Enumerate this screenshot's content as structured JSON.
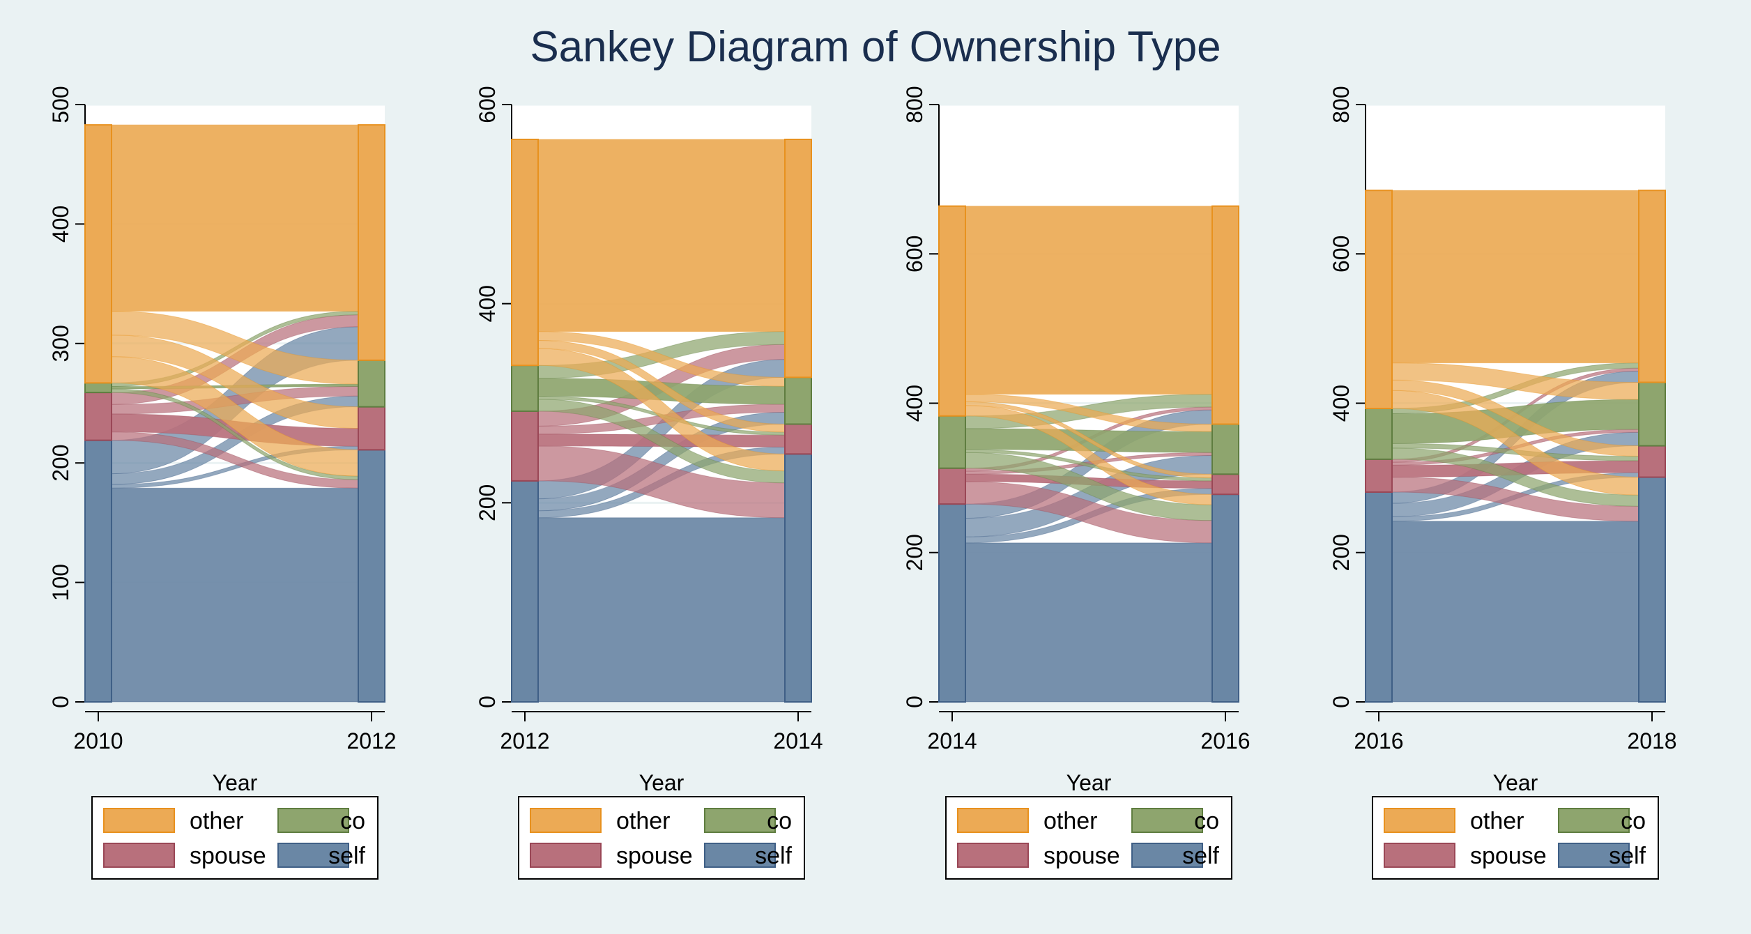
{
  "figure_title": "Sankey Diagram of Ownership Type",
  "colors": {
    "other": "#ecaa55",
    "co": "#8ea56e",
    "spouse": "#b8707c",
    "self": "#6a87a5",
    "other_edge": "#e8911e",
    "co_edge": "#5f7d40",
    "spouse_edge": "#9a4756",
    "self_edge": "#3f5f86",
    "background": "#eaf2f3",
    "plot_background": "#ffffff",
    "grid": "#eaf2f3",
    "title": "#1a2e4e"
  },
  "chart_data": [
    {
      "type": "sankey",
      "xlabel": "Year",
      "x": [
        2010,
        2012
      ],
      "ylim": [
        0,
        500
      ],
      "yticks": [
        0,
        100,
        200,
        300,
        400,
        500
      ],
      "categories": [
        "self",
        "spouse",
        "co",
        "other"
      ],
      "legend": [
        "other",
        "co",
        "spouse",
        "self"
      ],
      "legend_position": "bottom",
      "totals": [
        {
          "self": 219,
          "spouse": 40,
          "co": 8,
          "other": 216
        },
        {
          "self": 211,
          "spouse": 36,
          "co": 39,
          "other": 197
        }
      ],
      "flows": [
        {
          "from": "self",
          "to": "self",
          "value": 179
        },
        {
          "from": "self",
          "to": "spouse",
          "value": 3
        },
        {
          "from": "self",
          "to": "co",
          "value": 9
        },
        {
          "from": "self",
          "to": "other",
          "value": 28
        },
        {
          "from": "spouse",
          "to": "self",
          "value": 7
        },
        {
          "from": "spouse",
          "to": "spouse",
          "value": 15
        },
        {
          "from": "spouse",
          "to": "co",
          "value": 8
        },
        {
          "from": "spouse",
          "to": "other",
          "value": 10
        },
        {
          "from": "co",
          "to": "self",
          "value": 3
        },
        {
          "from": "co",
          "to": "co",
          "value": 2
        },
        {
          "from": "co",
          "to": "other",
          "value": 3
        },
        {
          "from": "other",
          "to": "self",
          "value": 22
        },
        {
          "from": "other",
          "to": "spouse",
          "value": 18
        },
        {
          "from": "other",
          "to": "co",
          "value": 20
        },
        {
          "from": "other",
          "to": "other",
          "value": 156
        }
      ]
    },
    {
      "type": "sankey",
      "xlabel": "Year",
      "x": [
        2012,
        2014
      ],
      "ylim": [
        0,
        600
      ],
      "yticks": [
        0,
        200,
        400,
        600
      ],
      "categories": [
        "self",
        "spouse",
        "co",
        "other"
      ],
      "legend": [
        "other",
        "co",
        "spouse",
        "self"
      ],
      "legend_position": "bottom",
      "totals": [
        {
          "self": 222,
          "spouse": 70,
          "co": 46,
          "other": 227
        },
        {
          "self": 249,
          "spouse": 30,
          "co": 47,
          "other": 239
        }
      ],
      "flows": [
        {
          "from": "self",
          "to": "self",
          "value": 185
        },
        {
          "from": "self",
          "to": "spouse",
          "value": 7
        },
        {
          "from": "self",
          "to": "co",
          "value": 12
        },
        {
          "from": "self",
          "to": "other",
          "value": 18
        },
        {
          "from": "spouse",
          "to": "self",
          "value": 35
        },
        {
          "from": "spouse",
          "to": "spouse",
          "value": 12
        },
        {
          "from": "spouse",
          "to": "co",
          "value": 8
        },
        {
          "from": "spouse",
          "to": "other",
          "value": 15
        },
        {
          "from": "co",
          "to": "self",
          "value": 12
        },
        {
          "from": "co",
          "to": "spouse",
          "value": 3
        },
        {
          "from": "co",
          "to": "co",
          "value": 18
        },
        {
          "from": "co",
          "to": "other",
          "value": 13
        },
        {
          "from": "other",
          "to": "self",
          "value": 17
        },
        {
          "from": "other",
          "to": "spouse",
          "value": 8
        },
        {
          "from": "other",
          "to": "co",
          "value": 9
        },
        {
          "from": "other",
          "to": "other",
          "value": 193
        }
      ]
    },
    {
      "type": "sankey",
      "xlabel": "Year",
      "x": [
        2014,
        2016
      ],
      "ylim": [
        0,
        800
      ],
      "yticks": [
        0,
        200,
        400,
        600,
        800
      ],
      "categories": [
        "self",
        "spouse",
        "co",
        "other"
      ],
      "legend": [
        "other",
        "co",
        "spouse",
        "self"
      ],
      "legend_position": "bottom",
      "totals": [
        {
          "self": 265,
          "spouse": 48,
          "co": 70,
          "other": 281
        },
        {
          "self": 278,
          "spouse": 27,
          "co": 67,
          "other": 292
        }
      ],
      "flows": [
        {
          "from": "self",
          "to": "self",
          "value": 213
        },
        {
          "from": "self",
          "to": "spouse",
          "value": 8
        },
        {
          "from": "self",
          "to": "co",
          "value": 25
        },
        {
          "from": "self",
          "to": "other",
          "value": 19
        },
        {
          "from": "spouse",
          "to": "self",
          "value": 30
        },
        {
          "from": "spouse",
          "to": "spouse",
          "value": 10
        },
        {
          "from": "spouse",
          "to": "co",
          "value": 4
        },
        {
          "from": "spouse",
          "to": "other",
          "value": 4
        },
        {
          "from": "co",
          "to": "self",
          "value": 21
        },
        {
          "from": "co",
          "to": "spouse",
          "value": 4
        },
        {
          "from": "co",
          "to": "co",
          "value": 28
        },
        {
          "from": "co",
          "to": "other",
          "value": 17
        },
        {
          "from": "other",
          "to": "self",
          "value": 14
        },
        {
          "from": "other",
          "to": "spouse",
          "value": 5
        },
        {
          "from": "other",
          "to": "co",
          "value": 10
        },
        {
          "from": "other",
          "to": "other",
          "value": 252
        }
      ]
    },
    {
      "type": "sankey",
      "xlabel": "Year",
      "x": [
        2016,
        2018
      ],
      "ylim": [
        0,
        800
      ],
      "yticks": [
        0,
        200,
        400,
        600,
        800
      ],
      "categories": [
        "self",
        "spouse",
        "co",
        "other"
      ],
      "legend": [
        "other",
        "co",
        "spouse",
        "self"
      ],
      "legend_position": "bottom",
      "totals": [
        {
          "self": 281,
          "spouse": 44,
          "co": 68,
          "other": 292
        },
        {
          "self": 301,
          "spouse": 42,
          "co": 85,
          "other": 257
        }
      ],
      "flows": [
        {
          "from": "self",
          "to": "self",
          "value": 242
        },
        {
          "from": "self",
          "to": "spouse",
          "value": 6
        },
        {
          "from": "self",
          "to": "co",
          "value": 18
        },
        {
          "from": "self",
          "to": "other",
          "value": 15
        },
        {
          "from": "spouse",
          "to": "self",
          "value": 20
        },
        {
          "from": "spouse",
          "to": "spouse",
          "value": 16
        },
        {
          "from": "spouse",
          "to": "co",
          "value": 4
        },
        {
          "from": "spouse",
          "to": "other",
          "value": 4
        },
        {
          "from": "co",
          "to": "self",
          "value": 15
        },
        {
          "from": "co",
          "to": "spouse",
          "value": 6
        },
        {
          "from": "co",
          "to": "co",
          "value": 40
        },
        {
          "from": "co",
          "to": "other",
          "value": 7
        },
        {
          "from": "other",
          "to": "self",
          "value": 24
        },
        {
          "from": "other",
          "to": "spouse",
          "value": 14
        },
        {
          "from": "other",
          "to": "co",
          "value": 23
        },
        {
          "from": "other",
          "to": "other",
          "value": 231
        }
      ]
    }
  ]
}
